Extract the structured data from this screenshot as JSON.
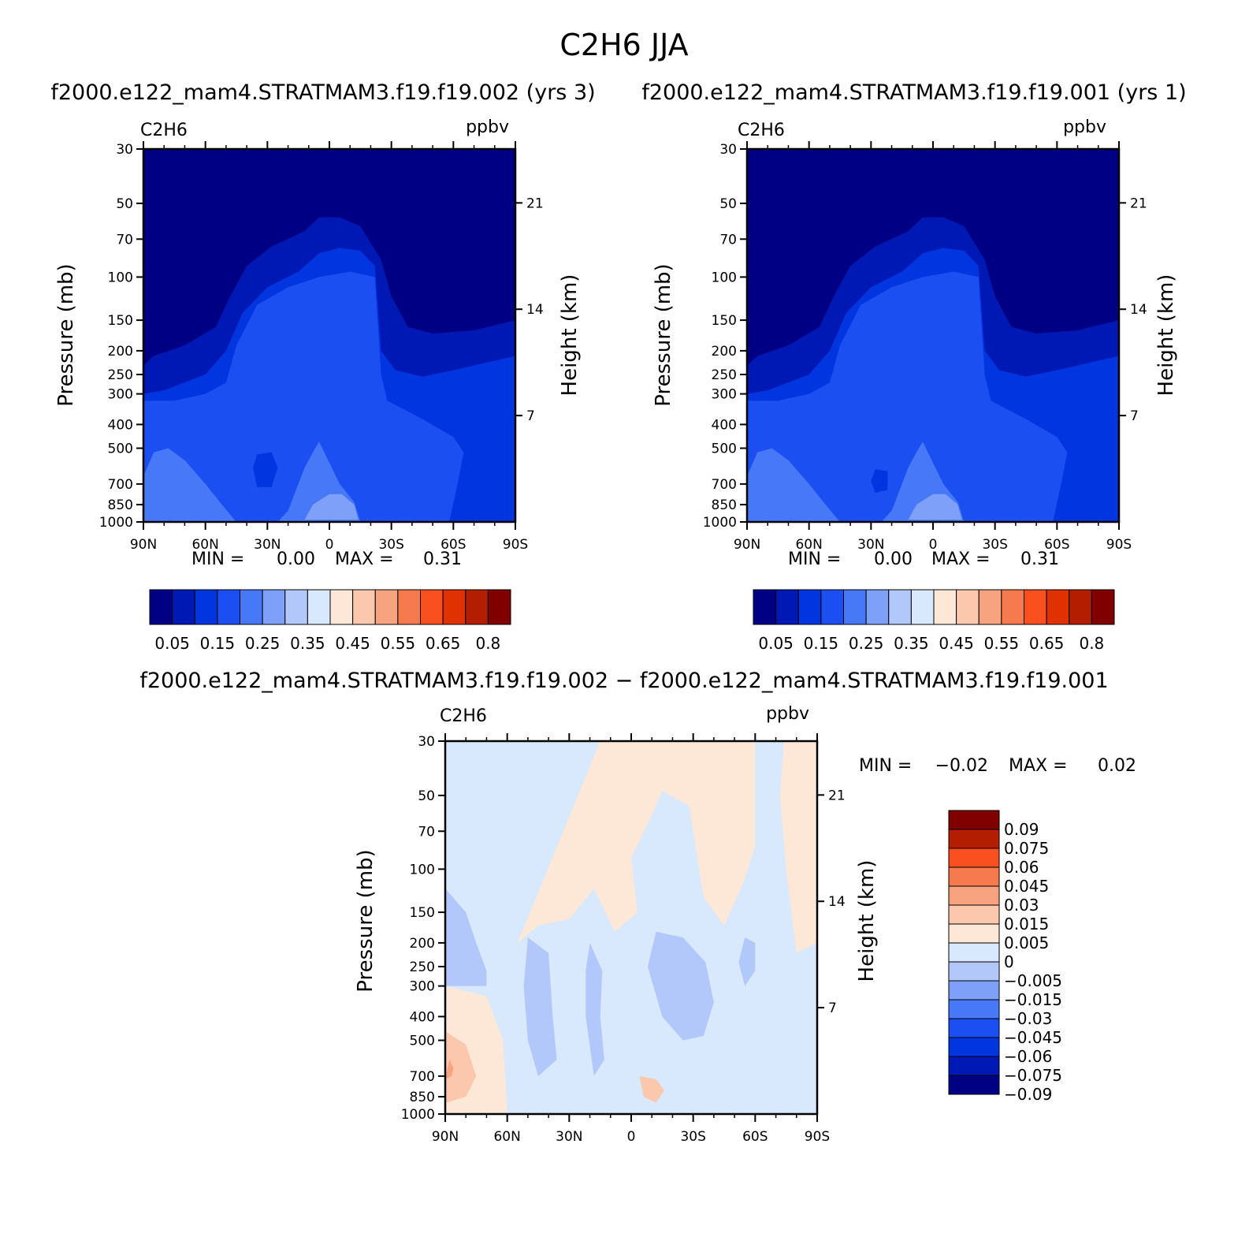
{
  "figure_title": "C2H6 JJA",
  "colors": {
    "fill_levels": [
      "#000084",
      "#0019b4",
      "#0035e0",
      "#1c4ff2",
      "#4678f8",
      "#7ea0f8",
      "#b3c8fa",
      "#d8e8fd",
      "#fde8d8",
      "#fbc8ae",
      "#f8a380",
      "#f77a4e",
      "#fa5020",
      "#e03200",
      "#b31e00",
      "#800000"
    ],
    "diff_levels": [
      "#000084",
      "#0019b4",
      "#0035e0",
      "#1c4ff2",
      "#4678f8",
      "#7ea0f8",
      "#b3c8fa",
      "#d8e8fd",
      "#fde8d8",
      "#fbc8ae",
      "#f8a380",
      "#f77a4e",
      "#fa5020",
      "#b31e00",
      "#800000"
    ]
  },
  "panel_left": {
    "subtitle": "f2000.e122_mam4.STRATMAM3.f19.f19.002 (yrs 3)",
    "var": "C2H6",
    "units": "ppbv",
    "ylabel": "Pressure (mb)",
    "y2label": "Height (km)",
    "min_label": "MIN =",
    "min_value": "0.00",
    "max_label": "MAX =",
    "max_value": "0.31"
  },
  "panel_right": {
    "subtitle": "f2000.e122_mam4.STRATMAM3.f19.f19.001 (yrs 1)",
    "var": "C2H6",
    "units": "ppbv",
    "ylabel": "Pressure (mb)",
    "y2label": "Height (km)",
    "min_label": "MIN =",
    "min_value": "0.00",
    "max_label": "MAX =",
    "max_value": "0.31"
  },
  "panel_diff": {
    "subtitle": "f2000.e122_mam4.STRATMAM3.f19.f19.002 − f2000.e122_mam4.STRATMAM3.f19.f19.001",
    "var": "C2H6",
    "units": "ppbv",
    "ylabel": "Pressure (mb)",
    "y2label": "Height (km)",
    "min_label": "MIN =",
    "min_value": "−0.02",
    "max_label": "MAX =",
    "max_value": "0.02"
  },
  "chart_data": [
    {
      "type": "heatmap",
      "title": "f2000.e122_mam4.STRATMAM3.f19.f19.002 (yrs 3)",
      "xlabel": "",
      "ylabel": "Pressure (mb)",
      "y2label": "Height (km)",
      "x_ticks": [
        "90N",
        "60N",
        "30N",
        "0",
        "30S",
        "60S",
        "90S"
      ],
      "y_ticks": [
        30,
        50,
        70,
        100,
        150,
        200,
        250,
        300,
        400,
        500,
        700,
        850,
        1000
      ],
      "y2_ticks": [
        7,
        14,
        21
      ],
      "y_scale": "log",
      "ylim": [
        1000,
        30
      ],
      "colorbar_labels": [
        "0.05",
        "0.15",
        "0.25",
        "0.35",
        "0.45",
        "0.55",
        "0.65",
        "0.8"
      ],
      "min": 0.0,
      "max": 0.31
    },
    {
      "type": "heatmap",
      "title": "f2000.e122_mam4.STRATMAM3.f19.f19.001 (yrs 1)",
      "xlabel": "",
      "ylabel": "Pressure (mb)",
      "y2label": "Height (km)",
      "x_ticks": [
        "90N",
        "60N",
        "30N",
        "0",
        "30S",
        "60S",
        "90S"
      ],
      "y_ticks": [
        30,
        50,
        70,
        100,
        150,
        200,
        250,
        300,
        400,
        500,
        700,
        850,
        1000
      ],
      "y2_ticks": [
        7,
        14,
        21
      ],
      "y_scale": "log",
      "ylim": [
        1000,
        30
      ],
      "colorbar_labels": [
        "0.05",
        "0.15",
        "0.25",
        "0.35",
        "0.45",
        "0.55",
        "0.65",
        "0.8"
      ],
      "min": 0.0,
      "max": 0.31
    },
    {
      "type": "heatmap",
      "title": "f2000.e122_mam4.STRATMAM3.f19.f19.002 − f2000.e122_mam4.STRATMAM3.f19.f19.001",
      "xlabel": "",
      "ylabel": "Pressure (mb)",
      "y2label": "Height (km)",
      "x_ticks": [
        "90N",
        "60N",
        "30N",
        "0",
        "30S",
        "60S",
        "90S"
      ],
      "y_ticks": [
        30,
        50,
        70,
        100,
        150,
        200,
        250,
        300,
        400,
        500,
        700,
        850,
        1000
      ],
      "y2_ticks": [
        7,
        14,
        21
      ],
      "y_scale": "log",
      "ylim": [
        1000,
        30
      ],
      "colorbar_labels": [
        "0.09",
        "0.075",
        "0.06",
        "0.045",
        "0.03",
        "0.015",
        "0.005",
        "0",
        "−0.005",
        "−0.015",
        "−0.03",
        "−0.045",
        "−0.06",
        "−0.075",
        "−0.09"
      ],
      "min": -0.02,
      "max": 0.02
    }
  ]
}
